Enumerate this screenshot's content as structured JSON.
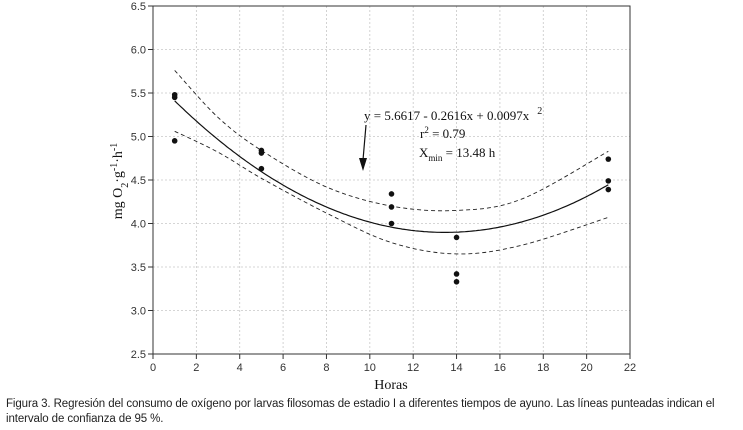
{
  "chart_data": {
    "type": "scatter",
    "title": "",
    "xlabel": "Horas",
    "ylabel": "mg O2·g-1·h-1",
    "xlim": [
      0,
      22
    ],
    "ylim": [
      2.5,
      6.5
    ],
    "x_ticks": [
      "0",
      "2",
      "4",
      "6",
      "8",
      "10",
      "12",
      "14",
      "16",
      "18",
      "20",
      "22"
    ],
    "y_ticks": [
      "2.5",
      "3.0",
      "3.5",
      "4.0",
      "4.5",
      "5.0",
      "5.5",
      "6.0",
      "6.5"
    ],
    "grid": true,
    "points": [
      {
        "x": 1,
        "y": 5.48
      },
      {
        "x": 1,
        "y": 5.45
      },
      {
        "x": 1,
        "y": 4.95
      },
      {
        "x": 5,
        "y": 4.84
      },
      {
        "x": 5,
        "y": 4.81
      },
      {
        "x": 5,
        "y": 4.63
      },
      {
        "x": 11,
        "y": 4.34
      },
      {
        "x": 11,
        "y": 4.19
      },
      {
        "x": 11,
        "y": 4.0
      },
      {
        "x": 14,
        "y": 3.84
      },
      {
        "x": 14,
        "y": 3.42
      },
      {
        "x": 14,
        "y": 3.33
      },
      {
        "x": 21,
        "y": 4.74
      },
      {
        "x": 21,
        "y": 4.49
      },
      {
        "x": 21,
        "y": 4.39
      }
    ],
    "regression": {
      "intercept": 5.6617,
      "slope": -0.2616,
      "quadratic": 0.0097,
      "x_range": [
        1,
        21
      ]
    },
    "confidence_upper": [
      {
        "x": 1,
        "y": 5.76
      },
      {
        "x": 3,
        "y": 5.22
      },
      {
        "x": 5,
        "y": 4.84
      },
      {
        "x": 8,
        "y": 4.42
      },
      {
        "x": 11,
        "y": 4.2
      },
      {
        "x": 14,
        "y": 4.15
      },
      {
        "x": 17,
        "y": 4.28
      },
      {
        "x": 21,
        "y": 4.83
      }
    ],
    "confidence_lower": [
      {
        "x": 1,
        "y": 5.06
      },
      {
        "x": 3,
        "y": 4.82
      },
      {
        "x": 5,
        "y": 4.52
      },
      {
        "x": 8,
        "y": 4.12
      },
      {
        "x": 11,
        "y": 3.78
      },
      {
        "x": 14,
        "y": 3.65
      },
      {
        "x": 17,
        "y": 3.75
      },
      {
        "x": 21,
        "y": 4.07
      }
    ],
    "annotation": {
      "equation_main": "y = 5.6617 - 0.2616x + 0.0097x",
      "equation_exp": "2",
      "r_base": "r",
      "r_sup": "2",
      "r_value": " = 0.79",
      "xmin_base": "X",
      "xmin_sub": "min",
      "xmin_value": " = 13.48 h"
    },
    "ylabel_parts": {
      "a": "mg O",
      "a_sub": "2",
      "b": "·g",
      "b_sup": "-1",
      "c": "·h",
      "c_sup": "-1"
    }
  },
  "caption": "Figura 3. Regresión del consumo de oxígeno por larvas filosomas de estadio I a diferentes tiempos de ayuno. Las líneas punteadas indican el intervalo de confianza de 95 %."
}
